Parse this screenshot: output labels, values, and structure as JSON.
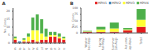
{
  "chart_data": [
    {
      "type": "bar",
      "title": "A",
      "categories": [
        "Jan",
        "Feb",
        "Mar",
        "Apr",
        "May",
        "Jun",
        "Jul",
        "Aug",
        "Sep",
        "Oct",
        "Nov",
        "Dec"
      ],
      "series": [
        {
          "name": "HPIV1",
          "color": "#e41a1c",
          "values": [
            2,
            0,
            1,
            1,
            2,
            1,
            2,
            2,
            4,
            4,
            3,
            2
          ]
        },
        {
          "name": "HPIV2",
          "color": "#377eb8",
          "values": [
            0,
            1,
            0,
            0,
            0,
            0,
            0,
            0,
            0,
            0,
            0,
            0
          ]
        },
        {
          "name": "HPIV3",
          "color": "#ffff33",
          "values": [
            1,
            0,
            1,
            3,
            6,
            7,
            4,
            2,
            1,
            1,
            1,
            1
          ]
        },
        {
          "name": "HPIV4",
          "color": "#4daf4a",
          "values": [
            1,
            0,
            1,
            2,
            8,
            10,
            9,
            5,
            2,
            2,
            2,
            1
          ]
        }
      ],
      "ylabel": "No. Cases",
      "ylim": [
        0,
        22
      ],
      "yticks": [
        0,
        5,
        10,
        15,
        20
      ],
      "stacked": true
    },
    {
      "type": "bar",
      "title": "B",
      "categories": [
        "Winter\n(Dec-Feb)",
        "Spring\n(Mar-May)",
        "Summer\n(Jun-Aug)",
        "Autumn\n(Sep-Nov)",
        "Total"
      ],
      "series": [
        {
          "name": "HPIV1",
          "color": "#e41a1c",
          "values": [
            4,
            4,
            5,
            11,
            24
          ]
        },
        {
          "name": "HPIV2",
          "color": "#377eb8",
          "values": [
            1,
            0,
            0,
            0,
            1
          ]
        },
        {
          "name": "HPIV3",
          "color": "#ffff33",
          "values": [
            2,
            10,
            13,
            3,
            28
          ]
        },
        {
          "name": "HPIV4",
          "color": "#4daf4a",
          "values": [
            2,
            11,
            24,
            6,
            43
          ]
        }
      ],
      "ylabel": "No. Cases",
      "ylim": [
        0,
        100
      ],
      "yticks": [
        0,
        25,
        50,
        75,
        100
      ],
      "stacked": true,
      "legend": "upper right"
    }
  ]
}
